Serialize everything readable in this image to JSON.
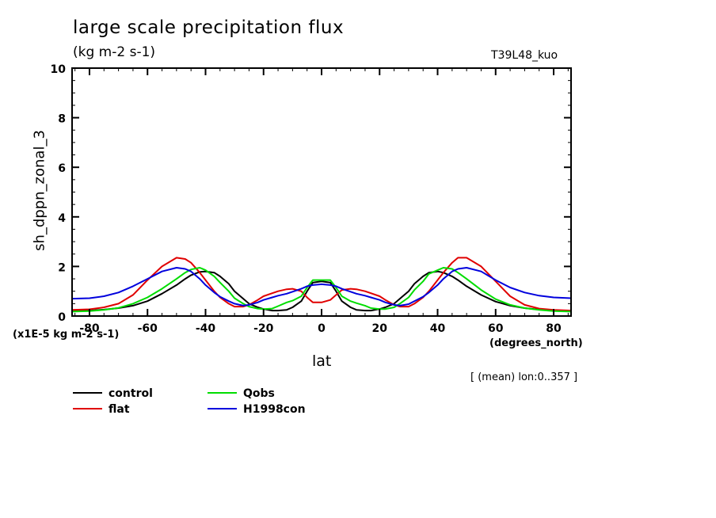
{
  "chart_data": {
    "type": "line",
    "title": "large scale precipitation flux",
    "subtitle": "(kg m-2 s-1)",
    "run_label": "T39L48_kuo",
    "xlabel": "lat",
    "x_units": "(degrees_north)",
    "ylabel": "sh_dppn_zonal_3",
    "y_scale_note": "(x1E-5 kg m-2 s-1)",
    "annotation": "[ (mean) lon:0..357 ]",
    "xlim": [
      -86,
      86
    ],
    "ylim": [
      0,
      10
    ],
    "x_ticks": [
      -80,
      -60,
      -40,
      -20,
      0,
      20,
      40,
      60,
      80
    ],
    "x_tick_labels": [
      "-80",
      "-60",
      "-40",
      "-20",
      "0",
      "20",
      "40",
      "60",
      "80"
    ],
    "y_ticks": [
      0,
      2,
      4,
      6,
      8,
      10
    ],
    "y_tick_labels": [
      "0",
      "2",
      "4",
      "6",
      "8",
      "10"
    ],
    "grid": false,
    "legend_position": "bottom-left",
    "x": [
      -86,
      -80,
      -75,
      -70,
      -65,
      -60,
      -55,
      -50,
      -47,
      -45,
      -42,
      -40,
      -37,
      -35,
      -32,
      -30,
      -27,
      -25,
      -22,
      -20,
      -17,
      -15,
      -12,
      -10,
      -7,
      -5,
      -3,
      0,
      3,
      5,
      7,
      10,
      12,
      15,
      17,
      20,
      22,
      25,
      27,
      30,
      32,
      35,
      37,
      40,
      42,
      45,
      47,
      50,
      55,
      60,
      65,
      70,
      75,
      80,
      86
    ],
    "series": [
      {
        "name": "control",
        "color": "#000000",
        "values": [
          0.2,
          0.22,
          0.26,
          0.32,
          0.42,
          0.6,
          0.9,
          1.25,
          1.5,
          1.65,
          1.78,
          1.8,
          1.75,
          1.6,
          1.3,
          1.0,
          0.7,
          0.5,
          0.35,
          0.28,
          0.22,
          0.22,
          0.25,
          0.35,
          0.6,
          1.0,
          1.35,
          1.4,
          1.35,
          1.0,
          0.6,
          0.35,
          0.25,
          0.22,
          0.22,
          0.28,
          0.35,
          0.5,
          0.7,
          1.0,
          1.3,
          1.6,
          1.75,
          1.8,
          1.75,
          1.6,
          1.45,
          1.2,
          0.85,
          0.58,
          0.42,
          0.32,
          0.26,
          0.22,
          0.2
        ]
      },
      {
        "name": "flat",
        "color": "#e00000",
        "values": [
          0.25,
          0.27,
          0.35,
          0.5,
          0.85,
          1.45,
          2.0,
          2.35,
          2.3,
          2.15,
          1.75,
          1.45,
          1.0,
          0.75,
          0.5,
          0.38,
          0.38,
          0.45,
          0.65,
          0.8,
          0.92,
          1.0,
          1.08,
          1.1,
          1.0,
          0.75,
          0.55,
          0.55,
          0.65,
          0.85,
          1.05,
          1.1,
          1.08,
          1.0,
          0.92,
          0.8,
          0.65,
          0.45,
          0.38,
          0.38,
          0.5,
          0.75,
          1.0,
          1.45,
          1.75,
          2.15,
          2.35,
          2.35,
          2.0,
          1.4,
          0.8,
          0.45,
          0.3,
          0.25,
          0.22
        ]
      },
      {
        "name": "Qobs",
        "color": "#00dd00",
        "values": [
          0.18,
          0.2,
          0.25,
          0.33,
          0.5,
          0.75,
          1.1,
          1.5,
          1.75,
          1.88,
          1.95,
          1.85,
          1.6,
          1.35,
          1.0,
          0.72,
          0.5,
          0.38,
          0.3,
          0.28,
          0.3,
          0.4,
          0.55,
          0.62,
          0.8,
          1.15,
          1.45,
          1.45,
          1.45,
          1.15,
          0.8,
          0.6,
          0.52,
          0.42,
          0.32,
          0.28,
          0.28,
          0.35,
          0.5,
          0.75,
          1.05,
          1.4,
          1.7,
          1.85,
          1.95,
          1.9,
          1.75,
          1.5,
          1.05,
          0.68,
          0.45,
          0.32,
          0.25,
          0.2,
          0.18
        ]
      },
      {
        "name": "H1998con",
        "color": "#0000dd",
        "values": [
          0.7,
          0.72,
          0.8,
          0.95,
          1.2,
          1.5,
          1.8,
          1.95,
          1.9,
          1.8,
          1.5,
          1.25,
          0.95,
          0.78,
          0.6,
          0.5,
          0.42,
          0.45,
          0.55,
          0.65,
          0.75,
          0.82,
          0.9,
          0.98,
          1.1,
          1.2,
          1.25,
          1.28,
          1.25,
          1.2,
          1.1,
          0.98,
          0.9,
          0.82,
          0.75,
          0.65,
          0.55,
          0.45,
          0.42,
          0.48,
          0.6,
          0.78,
          0.95,
          1.25,
          1.5,
          1.8,
          1.9,
          1.95,
          1.8,
          1.45,
          1.15,
          0.95,
          0.82,
          0.75,
          0.72
        ]
      }
    ]
  }
}
